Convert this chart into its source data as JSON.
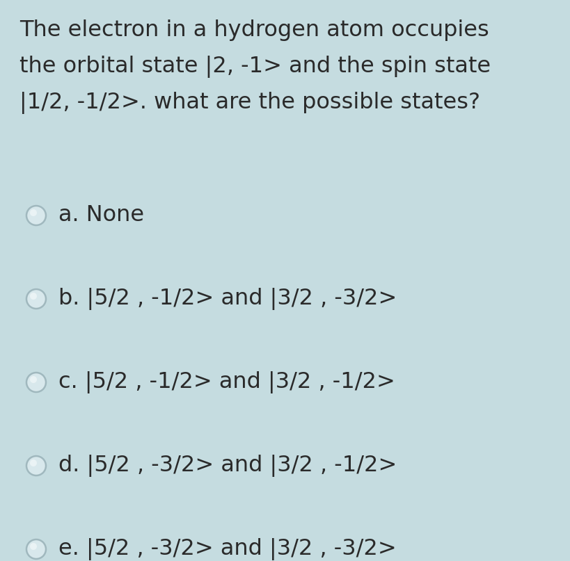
{
  "background_color": "#c5dce0",
  "title_lines": [
    "The electron in a hydrogen atom occupies",
    "the orbital state |2, -1> and the spin state",
    "|1/2, -1/2>. what are the possible states?"
  ],
  "options": [
    "a. None",
    "b. |5/2 , -1/2> and |3/2 , -3/2>",
    "c. |5/2 , -1/2> and |3/2 , -1/2>",
    "d. |5/2 , -3/2> and |3/2 , -1/2>",
    "e. |5/2 , -3/2> and |3/2 , -3/2>"
  ],
  "title_fontsize": 23,
  "option_fontsize": 23,
  "text_color": "#2a2a2a",
  "radio_outer_color": "#d8e8ec",
  "radio_edge_color": "#a0b8be",
  "radio_highlight_color": "#eaf3f5",
  "font_family": "DejaVu Sans"
}
